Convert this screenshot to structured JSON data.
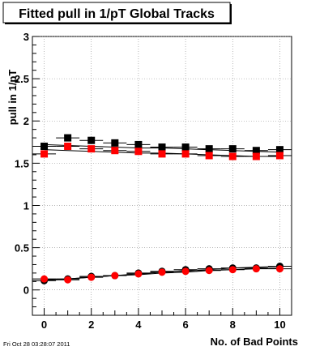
{
  "chart_data": {
    "type": "scatter",
    "title": "Fitted pull in 1/pT  Global Tracks",
    "xlabel": "No. of Bad Points",
    "ylabel": "pull in 1/pT",
    "xlim": [
      -0.5,
      10.5
    ],
    "ylim": [
      -0.3,
      3.0
    ],
    "xticks": [
      0,
      2,
      4,
      6,
      8,
      10
    ],
    "xtick_labels": [
      "0",
      "2",
      "4",
      "6",
      "8",
      "10"
    ],
    "yticks": [
      0,
      0.5,
      1,
      1.5,
      2,
      2.5,
      3
    ],
    "ytick_labels": [
      "0",
      "0.5",
      "1",
      "1.5",
      "2",
      "2.5",
      "3"
    ],
    "grid": true,
    "legend": "none",
    "x": [
      0,
      1,
      2,
      3,
      4,
      5,
      6,
      7,
      8,
      9,
      10
    ],
    "series": [
      {
        "marker": "square",
        "color": "#000000",
        "values": [
          1.7,
          1.8,
          1.77,
          1.74,
          1.72,
          1.69,
          1.69,
          1.67,
          1.67,
          1.65,
          1.66
        ],
        "fit": [
          1.72,
          1.71,
          1.7,
          1.69,
          1.68,
          1.68,
          1.67,
          1.66,
          1.65,
          1.64,
          1.63
        ]
      },
      {
        "marker": "square",
        "color": "#ff0000",
        "values": [
          1.61,
          1.7,
          1.67,
          1.65,
          1.64,
          1.61,
          1.61,
          1.59,
          1.58,
          1.58,
          1.59
        ],
        "fit": [
          1.66,
          1.65,
          1.64,
          1.63,
          1.62,
          1.62,
          1.61,
          1.6,
          1.59,
          1.58,
          1.58
        ]
      },
      {
        "marker": "circle",
        "color": "#000000",
        "values": [
          0.11,
          0.13,
          0.16,
          0.17,
          0.2,
          0.22,
          0.24,
          0.25,
          0.26,
          0.26,
          0.28
        ],
        "fit": [
          0.11,
          0.13,
          0.15,
          0.17,
          0.19,
          0.21,
          0.23,
          0.24,
          0.26,
          0.27,
          0.28
        ]
      },
      {
        "marker": "circle",
        "color": "#ff0000",
        "values": [
          0.13,
          0.12,
          0.15,
          0.17,
          0.19,
          0.21,
          0.22,
          0.23,
          0.24,
          0.25,
          0.25
        ],
        "fit": [
          0.12,
          0.13,
          0.15,
          0.17,
          0.18,
          0.2,
          0.21,
          0.23,
          0.24,
          0.25,
          0.26
        ]
      }
    ]
  },
  "footer": {
    "timestamp": "Fri Oct 28 03:28:07 2011"
  }
}
